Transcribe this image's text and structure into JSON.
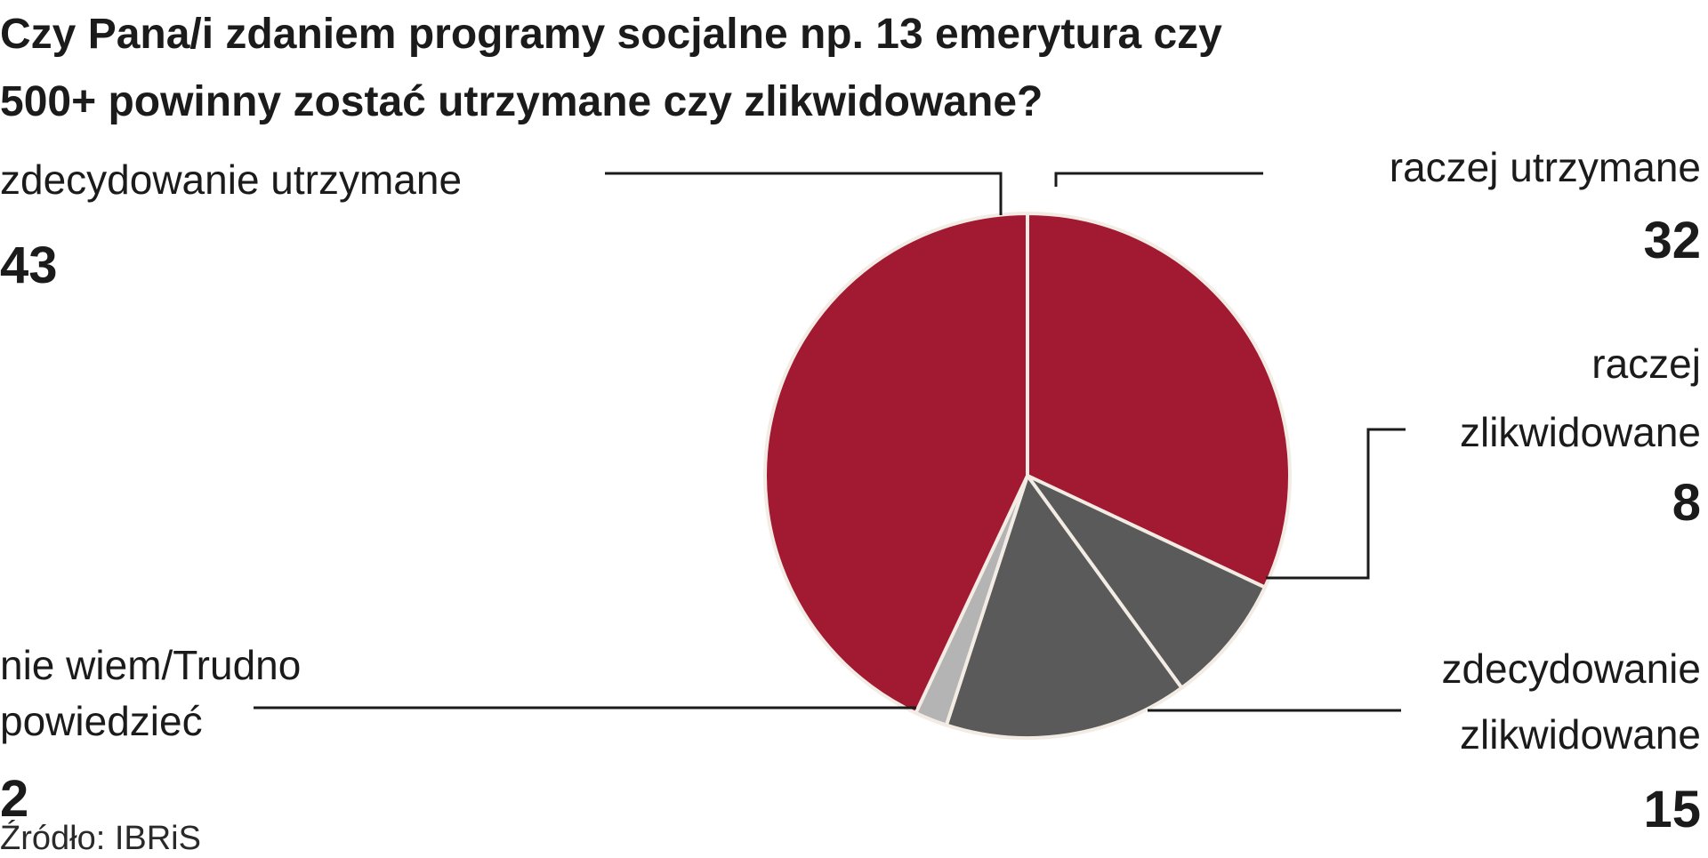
{
  "chart_data": {
    "type": "pie",
    "title": "Czy Pana/i zdaniem programy socjalne np. 13 emerytura czy 500+ powinny zostać utrzymane czy zlikwidowane?",
    "title_lines": [
      "Czy Pana/i zdaniem programy socjalne np. 13 emerytura czy",
      "500+ powinny zostać utrzymane czy zlikwidowane?"
    ],
    "slices": [
      {
        "label": "raczej utrzymane",
        "label_lines": [
          "raczej utrzymane"
        ],
        "value": 32,
        "color": "#a11a31"
      },
      {
        "label": "raczej zlikwidowane",
        "label_lines": [
          "raczej",
          "zlikwidowane"
        ],
        "value": 8,
        "color": "#5a5a5a"
      },
      {
        "label": "zdecydowanie zlikwidowane",
        "label_lines": [
          "zdecydowanie",
          "zlikwidowane"
        ],
        "value": 15,
        "color": "#5a5a5a"
      },
      {
        "label": "nie wiem/Trudno powiedzieć",
        "label_lines": [
          "nie wiem/Trudno",
          "powiedzieć"
        ],
        "value": 2,
        "color": "#b4b4b4"
      },
      {
        "label": "zdecydowanie utrzymane",
        "label_lines": [
          "zdecydowanie utrzymane"
        ],
        "value": 43,
        "color": "#a11a31"
      }
    ],
    "source": "Źródło: IBRiS"
  }
}
